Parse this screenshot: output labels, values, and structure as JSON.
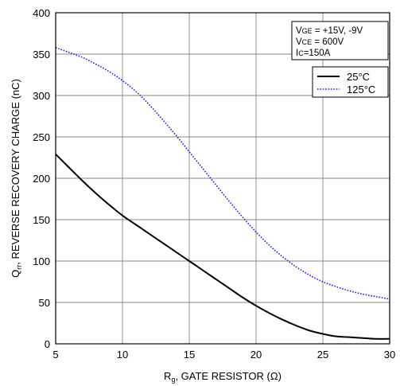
{
  "chart_data": {
    "type": "line",
    "xlabel": {
      "main": "R",
      "sub": "g",
      "rest": ", GATE RESISTOR (Ω)"
    },
    "ylabel": {
      "main": "Q",
      "sub": "rr",
      "rest": ", REVERSE RECOVERY CHARGE (nC)"
    },
    "xlim": [
      5,
      30
    ],
    "ylim": [
      0,
      400
    ],
    "xticks": [
      5,
      10,
      15,
      20,
      25,
      30
    ],
    "yticks": [
      0,
      50,
      100,
      150,
      200,
      250,
      300,
      350,
      400
    ],
    "grid": true,
    "conditions": [
      {
        "main": "V",
        "sub": "GE",
        "rest": " = +15V, -9V"
      },
      {
        "main": "V",
        "sub": "CE",
        "rest": " = 600V"
      },
      {
        "main": "I",
        "sub": "C",
        "rest": "=150A"
      }
    ],
    "legend_position": "top-right",
    "series": [
      {
        "name": "25°C",
        "color": "#000000",
        "style": "solid",
        "x": [
          5,
          6,
          7,
          8,
          9,
          10,
          11,
          12,
          13,
          14,
          15,
          16,
          17,
          18,
          19,
          20,
          21,
          22,
          23,
          24,
          25,
          26,
          27,
          28,
          29,
          30
        ],
        "y": [
          229,
          213,
          197,
          182,
          168,
          155,
          144,
          133,
          122,
          111,
          100,
          89,
          78,
          67,
          56,
          46,
          37,
          29,
          22,
          16,
          12,
          9,
          8,
          7,
          6,
          6
        ]
      },
      {
        "name": "125°C",
        "color": "#1a1aff",
        "style": "dotted",
        "x": [
          5,
          6,
          7,
          8,
          9,
          10,
          11,
          12,
          13,
          14,
          15,
          16,
          17,
          18,
          19,
          20,
          21,
          22,
          23,
          24,
          25,
          26,
          27,
          28,
          29,
          30
        ],
        "y": [
          358,
          352,
          346,
          338,
          329,
          318,
          305,
          289,
          271,
          252,
          232,
          212,
          192,
          172,
          153,
          135,
          119,
          105,
          93,
          83,
          75,
          69,
          64,
          60,
          57,
          54
        ]
      }
    ]
  }
}
